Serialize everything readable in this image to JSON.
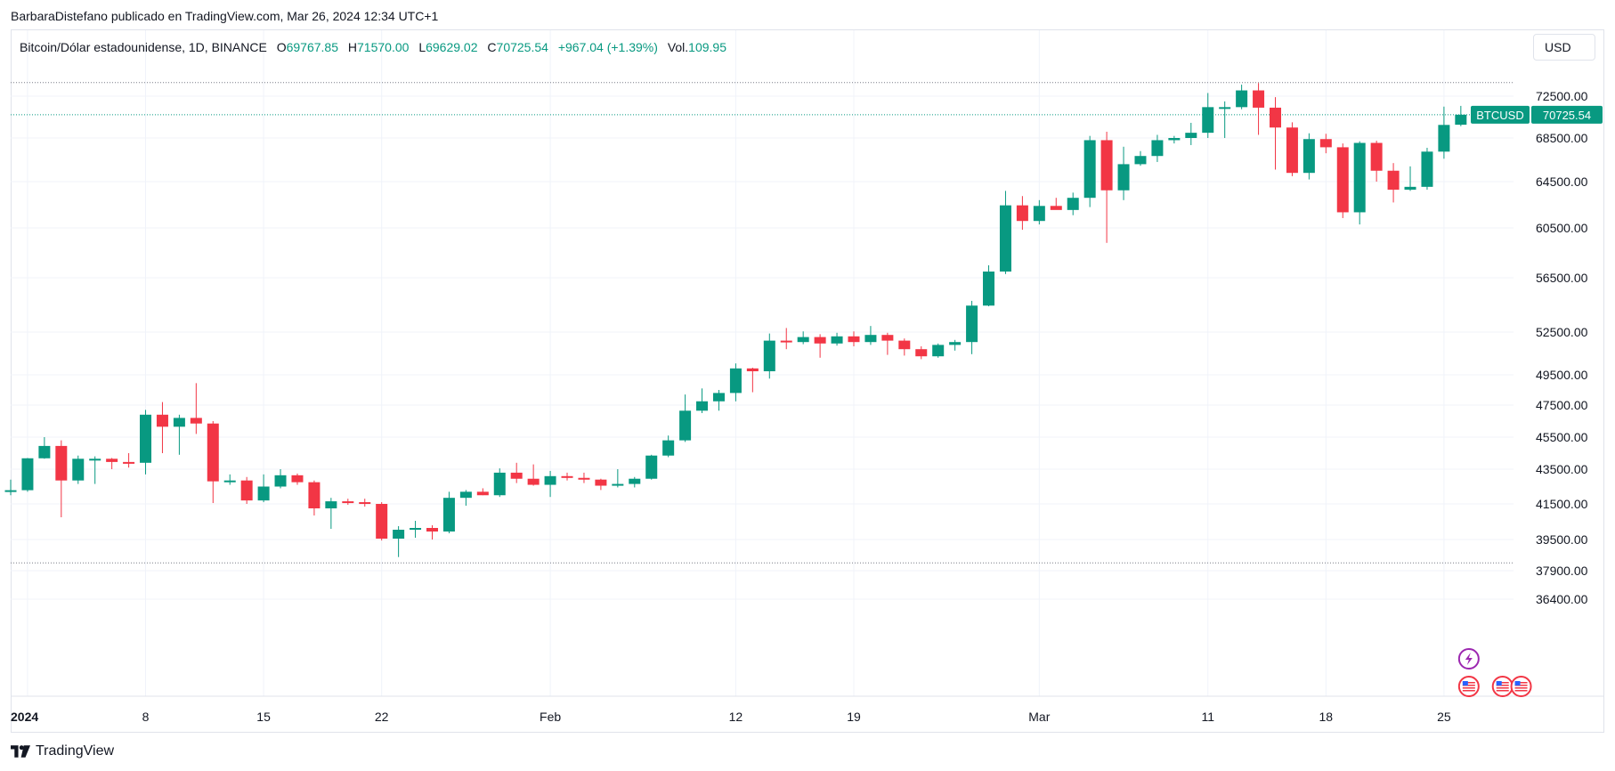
{
  "attribution": "BarbaraDistefano publicado en TradingView.com, Mar 26, 2024 12:34 UTC+1",
  "legend": {
    "symbol": "Bitcoin/Dólar estadounidense, 1D, BINANCE",
    "open_label": "O",
    "open": "69767.85",
    "high_label": "H",
    "high": "71570.00",
    "low_label": "L",
    "low": "69629.02",
    "close_label": "C",
    "close": "70725.54",
    "change": "+967.04 (+1.39%)",
    "vol_label": "Vol.",
    "vol": "109.95"
  },
  "currency_button": "USD",
  "price_tag": {
    "symbol": "BTCUSD",
    "value": "70725.54"
  },
  "footer": {
    "brand": "TradingView"
  },
  "colors": {
    "up": "#089981",
    "down": "#f23645",
    "grid": "#f0f3fa",
    "text": "#131722",
    "event": "#9c27b0"
  },
  "chart_data": {
    "type": "candlestick",
    "y_ticks": [
      72500,
      68500,
      64500,
      60500,
      56500,
      52500,
      49500,
      47500,
      45500,
      43500,
      41500,
      39500,
      37900,
      36400
    ],
    "y_tick_labels": [
      "72500.00",
      "68500.00",
      "64500.00",
      "60500.00",
      "56500.00",
      "52500.00",
      "49500.00",
      "47500.00",
      "45500.00",
      "43500.00",
      "41500.00",
      "39500.00",
      "37900.00",
      "36400.00"
    ],
    "x_tick_labels": [
      {
        "day": 1,
        "label": "2024"
      },
      {
        "day": 8,
        "label": "8"
      },
      {
        "day": 15,
        "label": "15"
      },
      {
        "day": 22,
        "label": "22"
      },
      {
        "day": 32,
        "label": "Feb"
      },
      {
        "day": 43,
        "label": "12"
      },
      {
        "day": 50,
        "label": "19"
      },
      {
        "day": 61,
        "label": "Mar"
      },
      {
        "day": 71,
        "label": "11"
      },
      {
        "day": 78,
        "label": "18"
      },
      {
        "day": 85,
        "label": "25"
      }
    ],
    "reference_lines": [
      73800,
      38300
    ],
    "current_price": 70725.54,
    "events": [
      {
        "day": 86,
        "type": "flash-icon",
        "row": 0
      },
      {
        "day": 86,
        "type": "us-flag-icon",
        "row": 1
      },
      {
        "day": 88,
        "type": "us-flag-icon",
        "row": 1
      },
      {
        "day": 89.1,
        "type": "us-flag-icon",
        "row": 1
      }
    ],
    "candles": [
      {
        "day": 0,
        "o": 42280,
        "h": 42900,
        "l": 42000,
        "c": 42290
      },
      {
        "day": 1,
        "o": 42290,
        "h": 44200,
        "l": 42200,
        "c": 44180
      },
      {
        "day": 2,
        "o": 44180,
        "h": 45500,
        "l": 44150,
        "c": 44950
      },
      {
        "day": 3,
        "o": 44950,
        "h": 45300,
        "l": 40750,
        "c": 42850
      },
      {
        "day": 4,
        "o": 42850,
        "h": 44350,
        "l": 42650,
        "c": 44150
      },
      {
        "day": 5,
        "o": 44150,
        "h": 44300,
        "l": 42650,
        "c": 44150
      },
      {
        "day": 6,
        "o": 44150,
        "h": 44200,
        "l": 43500,
        "c": 43950
      },
      {
        "day": 7,
        "o": 43950,
        "h": 44500,
        "l": 43600,
        "c": 43900
      },
      {
        "day": 8,
        "o": 43900,
        "h": 47200,
        "l": 43200,
        "c": 46900
      },
      {
        "day": 9,
        "o": 46900,
        "h": 47700,
        "l": 44500,
        "c": 46150
      },
      {
        "day": 10,
        "o": 46150,
        "h": 46900,
        "l": 44400,
        "c": 46700
      },
      {
        "day": 11,
        "o": 46700,
        "h": 48950,
        "l": 45700,
        "c": 46350
      },
      {
        "day": 12,
        "o": 46350,
        "h": 46500,
        "l": 41550,
        "c": 42800
      },
      {
        "day": 13,
        "o": 42800,
        "h": 43200,
        "l": 42600,
        "c": 42850
      },
      {
        "day": 14,
        "o": 42850,
        "h": 43050,
        "l": 41500,
        "c": 41700
      },
      {
        "day": 15,
        "o": 41700,
        "h": 43200,
        "l": 41600,
        "c": 42500
      },
      {
        "day": 16,
        "o": 42500,
        "h": 43500,
        "l": 42400,
        "c": 43150
      },
      {
        "day": 17,
        "o": 43150,
        "h": 43250,
        "l": 42600,
        "c": 42750
      },
      {
        "day": 18,
        "o": 42750,
        "h": 42850,
        "l": 40850,
        "c": 41250
      },
      {
        "day": 19,
        "o": 41250,
        "h": 41850,
        "l": 40100,
        "c": 41650
      },
      {
        "day": 20,
        "o": 41650,
        "h": 41800,
        "l": 41450,
        "c": 41600
      },
      {
        "day": 21,
        "o": 41600,
        "h": 41800,
        "l": 41350,
        "c": 41500
      },
      {
        "day": 22,
        "o": 41500,
        "h": 41600,
        "l": 39450,
        "c": 39550
      },
      {
        "day": 23,
        "o": 39550,
        "h": 40250,
        "l": 38600,
        "c": 40050
      },
      {
        "day": 24,
        "o": 40050,
        "h": 40550,
        "l": 39600,
        "c": 40150
      },
      {
        "day": 25,
        "o": 40150,
        "h": 40300,
        "l": 39500,
        "c": 39950
      },
      {
        "day": 26,
        "o": 39950,
        "h": 42200,
        "l": 39850,
        "c": 41850
      },
      {
        "day": 27,
        "o": 41850,
        "h": 42300,
        "l": 41400,
        "c": 42200
      },
      {
        "day": 28,
        "o": 42200,
        "h": 42400,
        "l": 42000,
        "c": 42000
      },
      {
        "day": 29,
        "o": 42000,
        "h": 43550,
        "l": 41900,
        "c": 43300
      },
      {
        "day": 30,
        "o": 43300,
        "h": 43900,
        "l": 42700,
        "c": 42950
      },
      {
        "day": 31,
        "o": 42950,
        "h": 43800,
        "l": 42550,
        "c": 42600
      },
      {
        "day": 32,
        "o": 42600,
        "h": 43400,
        "l": 41900,
        "c": 43100
      },
      {
        "day": 33,
        "o": 43100,
        "h": 43300,
        "l": 42850,
        "c": 43000
      },
      {
        "day": 34,
        "o": 43000,
        "h": 43300,
        "l": 42700,
        "c": 42900
      },
      {
        "day": 35,
        "o": 42900,
        "h": 42950,
        "l": 42300,
        "c": 42550
      },
      {
        "day": 36,
        "o": 42550,
        "h": 43500,
        "l": 42450,
        "c": 42650
      },
      {
        "day": 37,
        "o": 42650,
        "h": 43050,
        "l": 42450,
        "c": 42950
      },
      {
        "day": 38,
        "o": 42950,
        "h": 44400,
        "l": 42900,
        "c": 44350
      },
      {
        "day": 39,
        "o": 44350,
        "h": 45600,
        "l": 44250,
        "c": 45300
      },
      {
        "day": 40,
        "o": 45300,
        "h": 48200,
        "l": 45200,
        "c": 47150
      },
      {
        "day": 41,
        "o": 47150,
        "h": 48600,
        "l": 47000,
        "c": 47750
      },
      {
        "day": 42,
        "o": 47750,
        "h": 48500,
        "l": 47150,
        "c": 48300
      },
      {
        "day": 43,
        "o": 48300,
        "h": 50300,
        "l": 47750,
        "c": 49950
      },
      {
        "day": 44,
        "o": 49950,
        "h": 50000,
        "l": 48350,
        "c": 49750
      },
      {
        "day": 45,
        "o": 49750,
        "h": 52400,
        "l": 49250,
        "c": 51900
      },
      {
        "day": 46,
        "o": 51900,
        "h": 52800,
        "l": 51300,
        "c": 51800
      },
      {
        "day": 47,
        "o": 51800,
        "h": 52550,
        "l": 51650,
        "c": 52150
      },
      {
        "day": 48,
        "o": 52150,
        "h": 52350,
        "l": 50700,
        "c": 51700
      },
      {
        "day": 49,
        "o": 51700,
        "h": 52450,
        "l": 51550,
        "c": 52200
      },
      {
        "day": 50,
        "o": 52200,
        "h": 52550,
        "l": 51500,
        "c": 51800
      },
      {
        "day": 51,
        "o": 51800,
        "h": 52950,
        "l": 51600,
        "c": 52300
      },
      {
        "day": 52,
        "o": 52300,
        "h": 52450,
        "l": 50900,
        "c": 51900
      },
      {
        "day": 53,
        "o": 51900,
        "h": 52050,
        "l": 50850,
        "c": 51300
      },
      {
        "day": 54,
        "o": 51300,
        "h": 51500,
        "l": 50600,
        "c": 50800
      },
      {
        "day": 55,
        "o": 50800,
        "h": 51700,
        "l": 50700,
        "c": 51600
      },
      {
        "day": 56,
        "o": 51600,
        "h": 51950,
        "l": 51200,
        "c": 51800
      },
      {
        "day": 57,
        "o": 51800,
        "h": 54800,
        "l": 50950,
        "c": 54450
      },
      {
        "day": 58,
        "o": 54450,
        "h": 57500,
        "l": 54400,
        "c": 57000
      },
      {
        "day": 59,
        "o": 57000,
        "h": 63700,
        "l": 56800,
        "c": 62450
      },
      {
        "day": 60,
        "o": 62450,
        "h": 63250,
        "l": 60350,
        "c": 61100
      },
      {
        "day": 61,
        "o": 61100,
        "h": 62900,
        "l": 60800,
        "c": 62400
      },
      {
        "day": 62,
        "o": 62400,
        "h": 63100,
        "l": 62100,
        "c": 62050
      },
      {
        "day": 63,
        "o": 62050,
        "h": 63550,
        "l": 61600,
        "c": 63100
      },
      {
        "day": 64,
        "o": 63100,
        "h": 68700,
        "l": 62300,
        "c": 68300
      },
      {
        "day": 65,
        "o": 68300,
        "h": 69100,
        "l": 59300,
        "c": 63750
      },
      {
        "day": 66,
        "o": 63750,
        "h": 67700,
        "l": 62900,
        "c": 66100
      },
      {
        "day": 67,
        "o": 66100,
        "h": 67300,
        "l": 65950,
        "c": 66850
      },
      {
        "day": 68,
        "o": 66850,
        "h": 68800,
        "l": 66300,
        "c": 68300
      },
      {
        "day": 69,
        "o": 68300,
        "h": 68700,
        "l": 68000,
        "c": 68500
      },
      {
        "day": 70,
        "o": 68500,
        "h": 69950,
        "l": 67850,
        "c": 69000
      },
      {
        "day": 71,
        "o": 69000,
        "h": 72800,
        "l": 68500,
        "c": 71450
      },
      {
        "day": 72,
        "o": 71450,
        "h": 72000,
        "l": 68500,
        "c": 71450
      },
      {
        "day": 73,
        "o": 71450,
        "h": 73600,
        "l": 71250,
        "c": 73050
      },
      {
        "day": 74,
        "o": 73050,
        "h": 73750,
        "l": 68800,
        "c": 71400
      },
      {
        "day": 75,
        "o": 71400,
        "h": 72400,
        "l": 65600,
        "c": 69500
      },
      {
        "day": 76,
        "o": 69500,
        "h": 70000,
        "l": 65000,
        "c": 65300
      },
      {
        "day": 77,
        "o": 65300,
        "h": 68950,
        "l": 64700,
        "c": 68400
      },
      {
        "day": 78,
        "o": 68400,
        "h": 68900,
        "l": 67100,
        "c": 67650
      },
      {
        "day": 79,
        "o": 67650,
        "h": 68000,
        "l": 61350,
        "c": 61850
      },
      {
        "day": 80,
        "o": 61850,
        "h": 68200,
        "l": 60800,
        "c": 68050
      },
      {
        "day": 81,
        "o": 68050,
        "h": 68250,
        "l": 64500,
        "c": 65500
      },
      {
        "day": 82,
        "o": 65500,
        "h": 66200,
        "l": 62700,
        "c": 63800
      },
      {
        "day": 83,
        "o": 63800,
        "h": 65900,
        "l": 63700,
        "c": 64050
      },
      {
        "day": 84,
        "o": 64050,
        "h": 67600,
        "l": 63800,
        "c": 67250
      },
      {
        "day": 85,
        "o": 67250,
        "h": 71500,
        "l": 66600,
        "c": 69750
      },
      {
        "day": 86,
        "o": 69767.85,
        "h": 71570,
        "l": 69629.02,
        "c": 70725.54
      }
    ]
  }
}
